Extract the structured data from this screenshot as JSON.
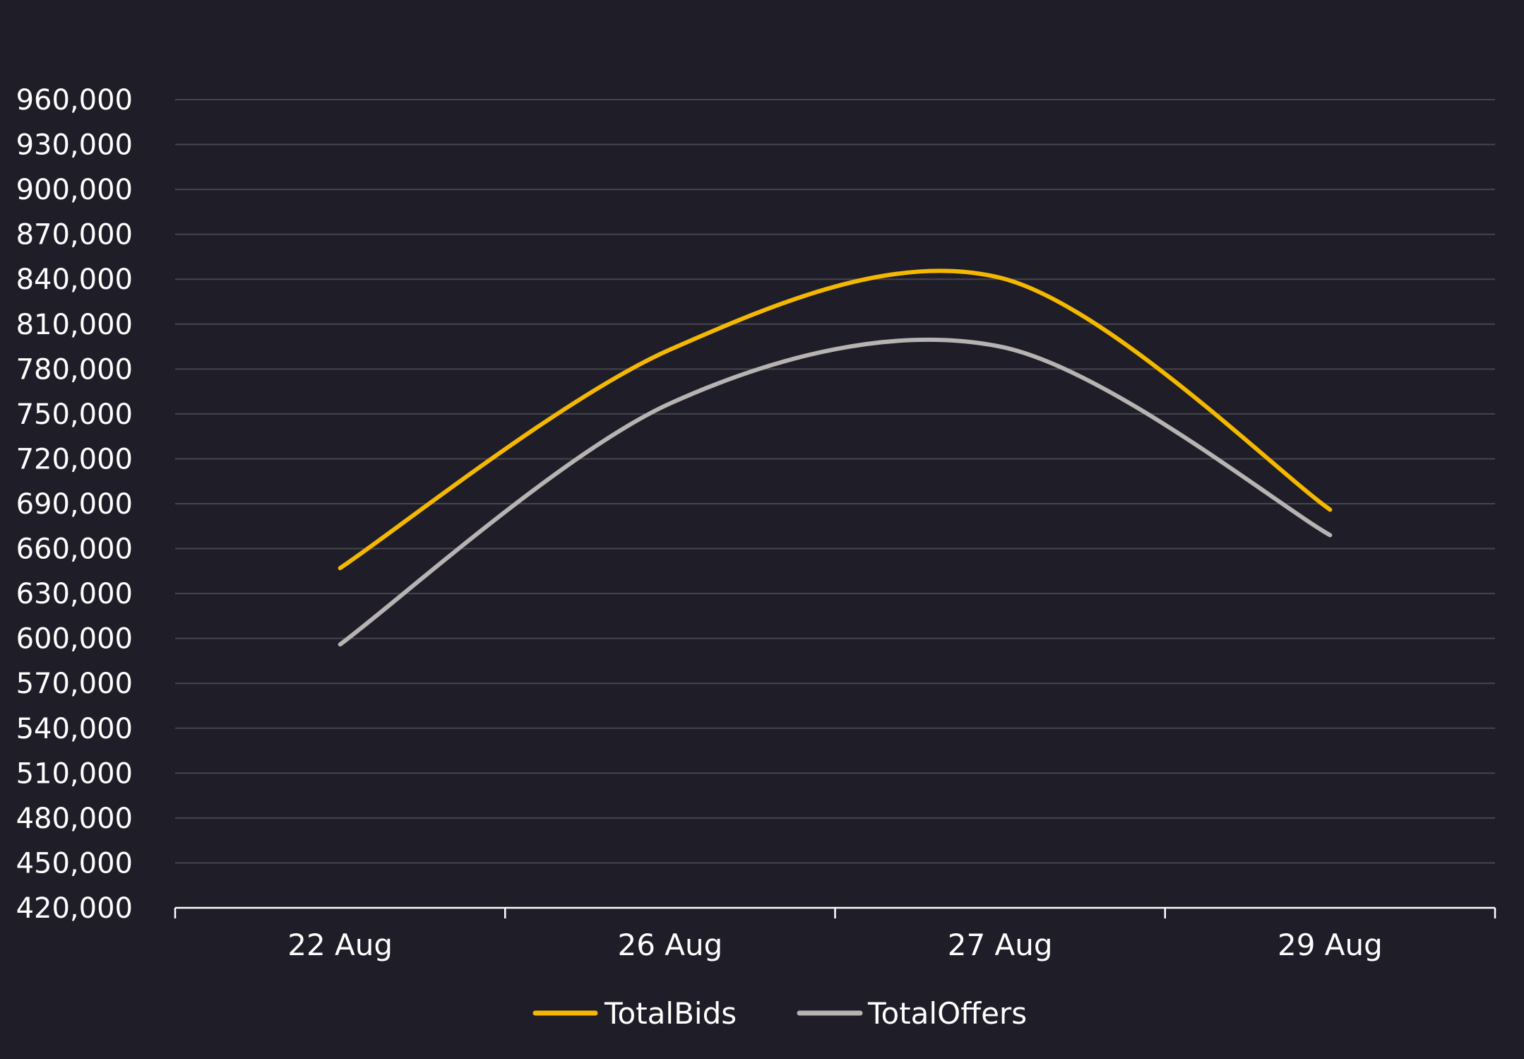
{
  "chart_data": {
    "type": "line",
    "title": "",
    "xlabel": "",
    "ylabel": "",
    "categories": [
      "22 Aug",
      "26 Aug",
      "27 Aug",
      "29 Aug"
    ],
    "series": [
      {
        "name": "TotalBids",
        "color": "#f5b800",
        "values": [
          647000,
          793000,
          841000,
          686000
        ]
      },
      {
        "name": "TotalOffers",
        "color": "#b7b3b3",
        "values": [
          596000,
          757000,
          795000,
          669000
        ]
      }
    ],
    "ylim": [
      420000,
      960000
    ],
    "yticks": [
      "420,000",
      "450,000",
      "480,000",
      "510,000",
      "540,000",
      "570,000",
      "600,000",
      "630,000",
      "660,000",
      "690,000",
      "720,000",
      "750,000",
      "780,000",
      "810,000",
      "840,000",
      "870,000",
      "900,000",
      "930,000",
      "960,000"
    ],
    "grid": true,
    "legend_position": "bottom-center",
    "smooth": true
  },
  "colors": {
    "background": "#1f1e28",
    "grid": "#46454d",
    "axis": "#ffffff",
    "text": "#ffffff"
  }
}
